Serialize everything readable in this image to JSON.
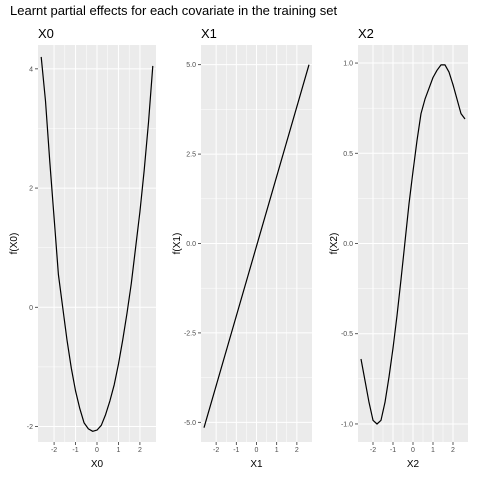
{
  "title": "Learnt partial effects for each covariate in the training set",
  "chart_data": [
    {
      "type": "line",
      "panel_title": "X0",
      "xlabel": "X0",
      "ylabel": "f(X0)",
      "xlim": [
        -2.75,
        2.75
      ],
      "ylim": [
        -2.26,
        4.4
      ],
      "xticks": [
        -2,
        -1,
        0,
        1,
        2
      ],
      "yticks": [
        -2,
        0,
        2,
        4
      ],
      "ytick_labels": [
        "-2",
        "0",
        "2",
        "4"
      ],
      "grid": true,
      "x": [
        -2.6,
        -2.4,
        -2.2,
        -2.0,
        -1.8,
        -1.6,
        -1.4,
        -1.2,
        -1.0,
        -0.8,
        -0.6,
        -0.4,
        -0.2,
        0.0,
        0.2,
        0.4,
        0.6,
        0.8,
        1.0,
        1.2,
        1.4,
        1.6,
        1.8,
        2.0,
        2.2,
        2.4,
        2.6
      ],
      "y": [
        4.2,
        3.46,
        2.44,
        1.5,
        0.55,
        0.0,
        -0.55,
        -1.02,
        -1.4,
        -1.7,
        -1.94,
        -2.04,
        -2.08,
        -2.06,
        -1.98,
        -1.8,
        -1.57,
        -1.3,
        -0.95,
        -0.55,
        -0.1,
        0.4,
        1.0,
        1.6,
        2.3,
        3.1,
        4.05
      ]
    },
    {
      "type": "line",
      "panel_title": "X1",
      "xlabel": "X1",
      "ylabel": "f(X1)",
      "xlim": [
        -2.75,
        2.75
      ],
      "ylim": [
        -5.55,
        5.55
      ],
      "xticks": [
        -2,
        -1,
        0,
        1,
        2
      ],
      "yticks": [
        -5.0,
        -2.5,
        0.0,
        2.5,
        5.0
      ],
      "ytick_labels": [
        "-5.0",
        "-2.5",
        "0.0",
        "2.5",
        "5.0"
      ],
      "grid": true,
      "x": [
        -2.6,
        2.6
      ],
      "y": [
        -5.15,
        5.0
      ]
    },
    {
      "type": "line",
      "panel_title": "X2",
      "xlabel": "X2",
      "ylabel": "f(X2)",
      "xlim": [
        -2.75,
        2.75
      ],
      "ylim": [
        -1.1,
        1.1
      ],
      "xticks": [
        -2,
        -1,
        0,
        1,
        2
      ],
      "yticks": [
        -1.0,
        -0.5,
        0.0,
        0.5,
        1.0
      ],
      "ytick_labels": [
        "-1.0",
        "-0.5",
        "0.0",
        "0.5",
        "1.0"
      ],
      "grid": true,
      "x": [
        -2.6,
        -2.4,
        -2.2,
        -2.0,
        -1.8,
        -1.6,
        -1.4,
        -1.2,
        -1.0,
        -0.8,
        -0.6,
        -0.4,
        -0.2,
        0.0,
        0.2,
        0.4,
        0.6,
        0.8,
        1.0,
        1.2,
        1.4,
        1.6,
        1.8,
        2.0,
        2.2,
        2.4,
        2.6
      ],
      "y": [
        -0.64,
        -0.76,
        -0.88,
        -0.98,
        -1.0,
        -0.98,
        -0.88,
        -0.74,
        -0.58,
        -0.4,
        -0.2,
        0.01,
        0.22,
        0.4,
        0.57,
        0.72,
        0.8,
        0.86,
        0.92,
        0.96,
        0.99,
        0.99,
        0.95,
        0.88,
        0.8,
        0.72,
        0.69
      ]
    }
  ]
}
